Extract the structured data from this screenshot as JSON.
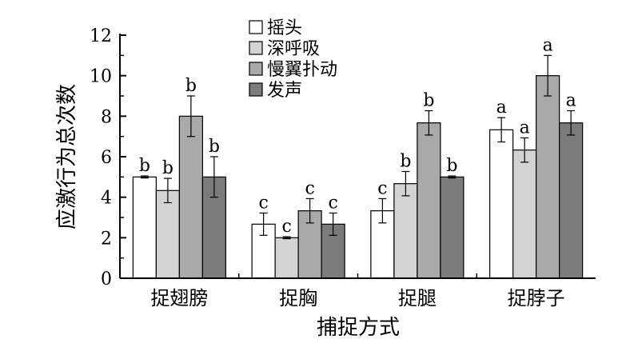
{
  "chart_data": {
    "type": "bar",
    "xlabel": "捕捉方式",
    "ylabel": "应激行为总次数",
    "ylim": [
      0,
      12
    ],
    "yticks": [
      0,
      2,
      4,
      6,
      8,
      10,
      12
    ],
    "categories": [
      "捉翅膀",
      "捉胸",
      "捉腿",
      "捉脖子"
    ],
    "legend_position": "top-center",
    "series": [
      {
        "name": "摇头",
        "color": "#ffffff",
        "values": [
          5.0,
          2.67,
          3.33,
          7.33
        ],
        "errors": [
          0.05,
          0.55,
          0.6,
          0.6
        ],
        "labels": [
          "b",
          "c",
          "c",
          "a"
        ]
      },
      {
        "name": "深呼吸",
        "color": "#d3d3d3",
        "values": [
          4.33,
          2.0,
          4.67,
          6.33
        ],
        "errors": [
          0.6,
          0.05,
          0.6,
          0.6
        ],
        "labels": [
          "b",
          "c",
          "b",
          "a"
        ]
      },
      {
        "name": "慢翼扑动",
        "color": "#a9a9a9",
        "values": [
          8.0,
          3.33,
          7.67,
          10.0
        ],
        "errors": [
          1.0,
          0.6,
          0.6,
          1.0
        ],
        "labels": [
          "b",
          "c",
          "b",
          "a"
        ]
      },
      {
        "name": "发声",
        "color": "#7b7b7b",
        "values": [
          5.0,
          2.67,
          5.0,
          7.67
        ],
        "errors": [
          1.0,
          0.55,
          0.05,
          0.6
        ],
        "labels": [
          "b",
          "c",
          "b",
          "a"
        ]
      }
    ]
  }
}
